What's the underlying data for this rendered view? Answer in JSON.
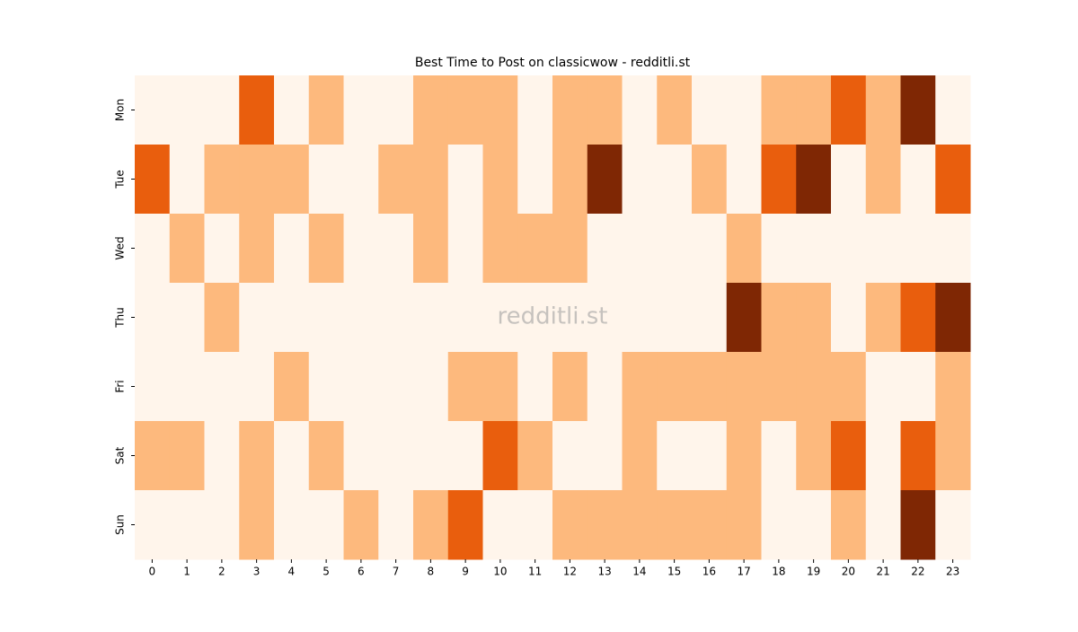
{
  "chart_data": {
    "type": "heatmap",
    "title": "Best Time to Post on classicwow - redditli.st",
    "watermark": "redditli.st",
    "x": [
      0,
      1,
      2,
      3,
      4,
      5,
      6,
      7,
      8,
      9,
      10,
      11,
      12,
      13,
      14,
      15,
      16,
      17,
      18,
      19,
      20,
      21,
      22,
      23
    ],
    "y": [
      "Mon",
      "Tue",
      "Wed",
      "Thu",
      "Fri",
      "Sat",
      "Sun"
    ],
    "colors": [
      "#fff5eb",
      "#fdb97d",
      "#e95e0d",
      "#7f2704"
    ],
    "values": [
      [
        0,
        0,
        0,
        2,
        0,
        1,
        0,
        0,
        1,
        1,
        1,
        0,
        1,
        1,
        0,
        1,
        0,
        0,
        1,
        1,
        2,
        1,
        3,
        0
      ],
      [
        2,
        0,
        1,
        1,
        1,
        0,
        0,
        1,
        1,
        0,
        1,
        0,
        1,
        3,
        0,
        0,
        1,
        0,
        2,
        3,
        0,
        1,
        0,
        2
      ],
      [
        0,
        1,
        0,
        1,
        0,
        1,
        0,
        0,
        1,
        0,
        1,
        1,
        1,
        0,
        0,
        0,
        0,
        1,
        0,
        0,
        0,
        0,
        0,
        0
      ],
      [
        0,
        0,
        1,
        0,
        0,
        0,
        0,
        0,
        0,
        0,
        0,
        0,
        0,
        0,
        0,
        0,
        0,
        3,
        1,
        1,
        0,
        1,
        2,
        3
      ],
      [
        0,
        0,
        0,
        0,
        1,
        0,
        0,
        0,
        0,
        1,
        1,
        0,
        1,
        0,
        1,
        1,
        1,
        1,
        1,
        1,
        1,
        0,
        0,
        1
      ],
      [
        1,
        1,
        0,
        1,
        0,
        1,
        0,
        0,
        0,
        0,
        2,
        1,
        0,
        0,
        1,
        0,
        0,
        1,
        0,
        1,
        2,
        0,
        2,
        1
      ],
      [
        0,
        0,
        0,
        1,
        0,
        0,
        1,
        0,
        1,
        2,
        0,
        0,
        1,
        1,
        1,
        1,
        1,
        1,
        0,
        0,
        1,
        0,
        3,
        0
      ]
    ]
  }
}
